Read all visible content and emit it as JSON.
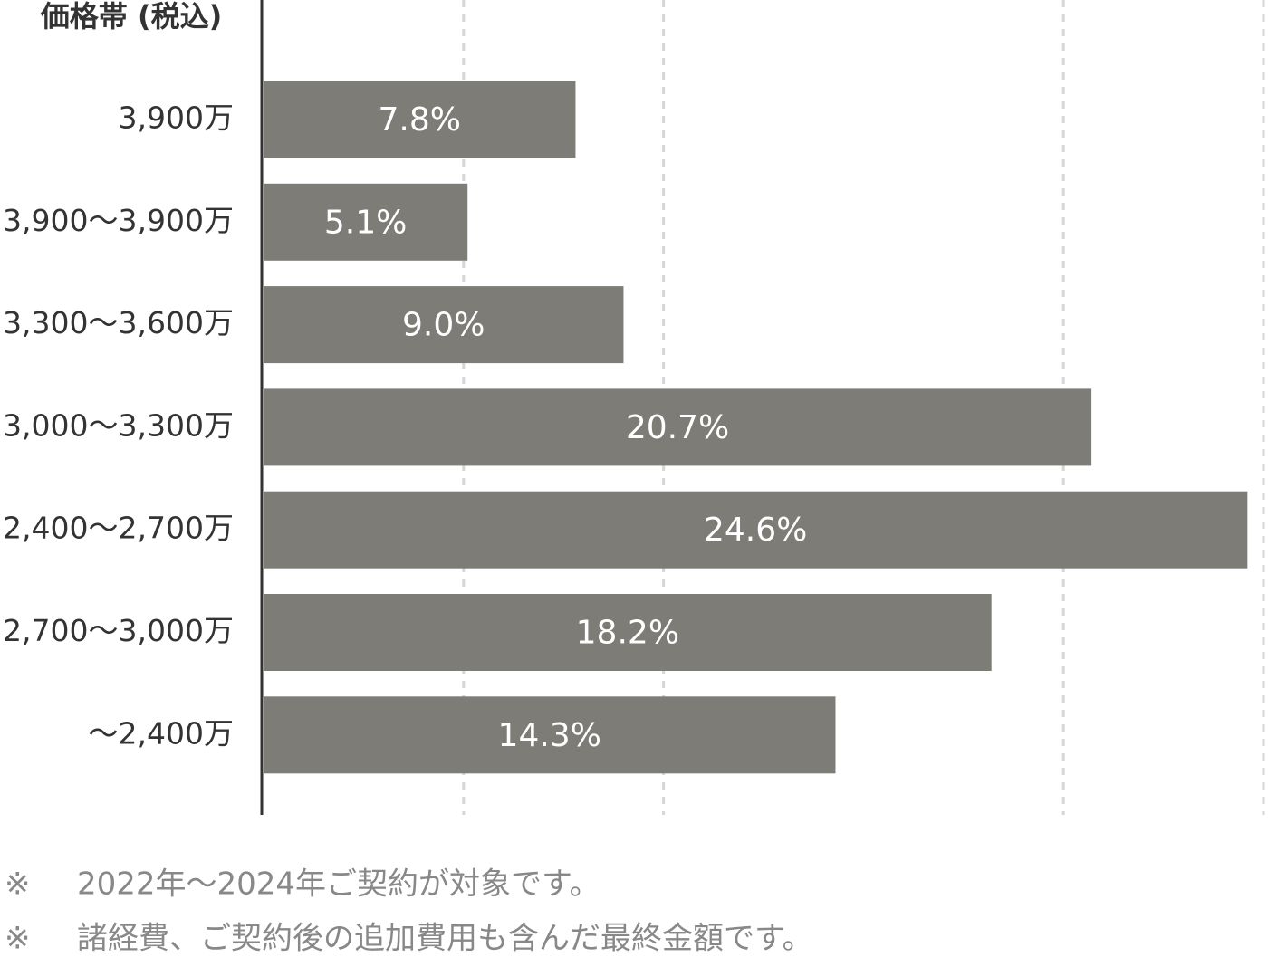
{
  "chart_data": {
    "type": "bar",
    "orientation": "horizontal",
    "ylabel": "価格帯 (税込)",
    "categories": [
      "3,900万",
      "3,900～3,900万",
      "3,300～3,600万",
      "3,000～3,300万",
      "2,400～2,700万",
      "2,700～3,000万",
      "～2,400万"
    ],
    "values": [
      7.8,
      5.1,
      9.0,
      20.7,
      24.6,
      18.2,
      14.3
    ],
    "value_labels": [
      "7.8%",
      "5.1%",
      "9.0%",
      "20.7%",
      "24.6%",
      "18.2%",
      "14.3%"
    ],
    "color": "#7d7c77",
    "xlim": [
      0,
      25
    ],
    "xticks": [
      5,
      10,
      20,
      25
    ],
    "grid": true,
    "notes": [
      {
        "marker": "※",
        "text": "2022年～2024年ご契約が対象です。"
      },
      {
        "marker": "※",
        "text": "諸経費、ご契約後の追加費用も含んだ最終金額です。"
      }
    ]
  }
}
